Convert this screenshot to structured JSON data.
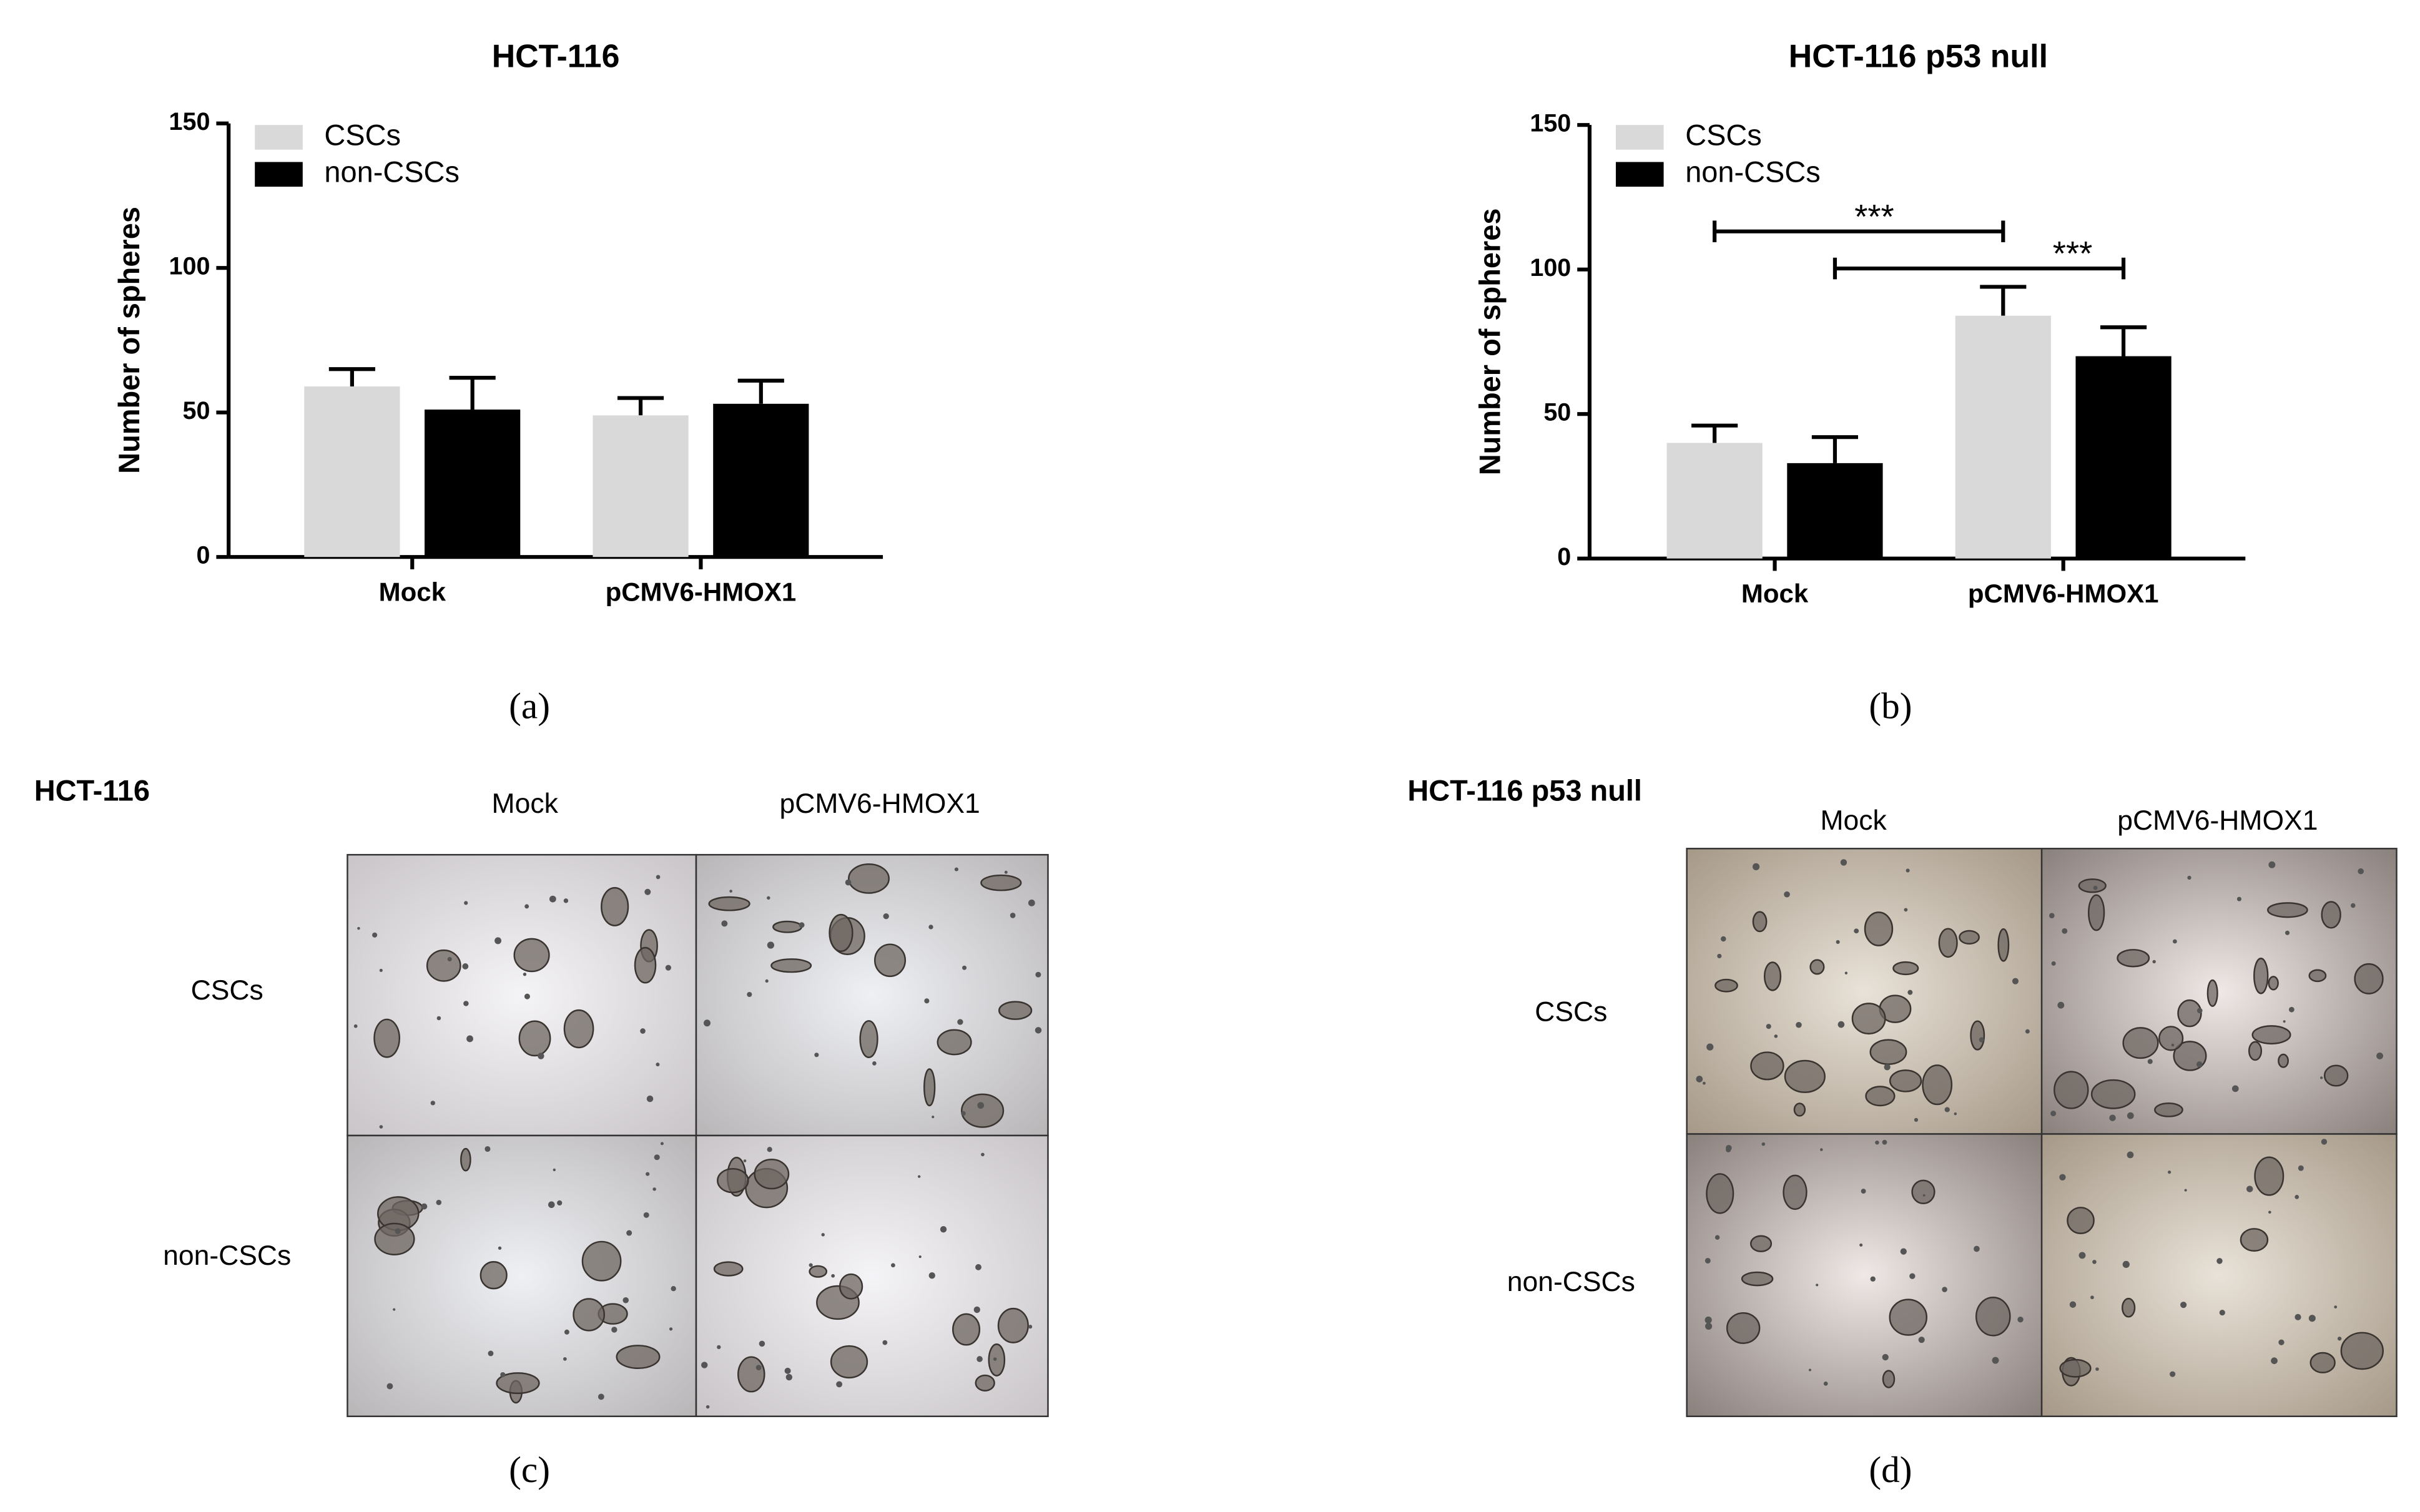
{
  "chart_data": [
    {
      "type": "bar",
      "title": "HCT-116",
      "y_label": "Number of spheres",
      "categories": [
        "Mock",
        "pCMV6-HMOX1"
      ],
      "series": [
        {
          "name": "CSCs",
          "color": "#d9d9d9",
          "values": [
            59,
            49
          ],
          "errors": [
            6,
            6
          ]
        },
        {
          "name": "non-CSCs",
          "color": "#000000",
          "values": [
            51,
            53
          ],
          "errors": [
            11,
            8
          ]
        }
      ],
      "ylim": [
        0,
        150
      ],
      "yticks": [
        0,
        50,
        100,
        150
      ],
      "legend": "upper left"
    },
    {
      "type": "bar",
      "title": "HCT-116 p53 null",
      "y_label": "Number of spheres",
      "categories": [
        "Mock",
        "pCMV6-HMOX1"
      ],
      "series": [
        {
          "name": "CSCs",
          "color": "#d9d9d9",
          "values": [
            40,
            84
          ],
          "errors": [
            6,
            10
          ]
        },
        {
          "name": "non-CSCs",
          "color": "#000000",
          "values": [
            33,
            70
          ],
          "errors": [
            9,
            10
          ]
        }
      ],
      "ylim": [
        0,
        150
      ],
      "yticks": [
        0,
        50,
        100,
        150
      ],
      "legend": "upper left",
      "annotations": [
        "***",
        "***"
      ]
    }
  ],
  "panel_labels": [
    "(a)",
    "(b)",
    "(c)",
    "(d)"
  ],
  "micrographs": [
    {
      "title": "HCT-116",
      "columns": [
        "Mock",
        "pCMV6-HMOX1"
      ],
      "rows": [
        "CSCs",
        "non-CSCs"
      ]
    },
    {
      "title": "HCT-116 p53 null",
      "columns": [
        "Mock",
        "pCMV6-HMOX1"
      ],
      "rows": [
        "CSCs",
        "non-CSCs"
      ]
    }
  ]
}
